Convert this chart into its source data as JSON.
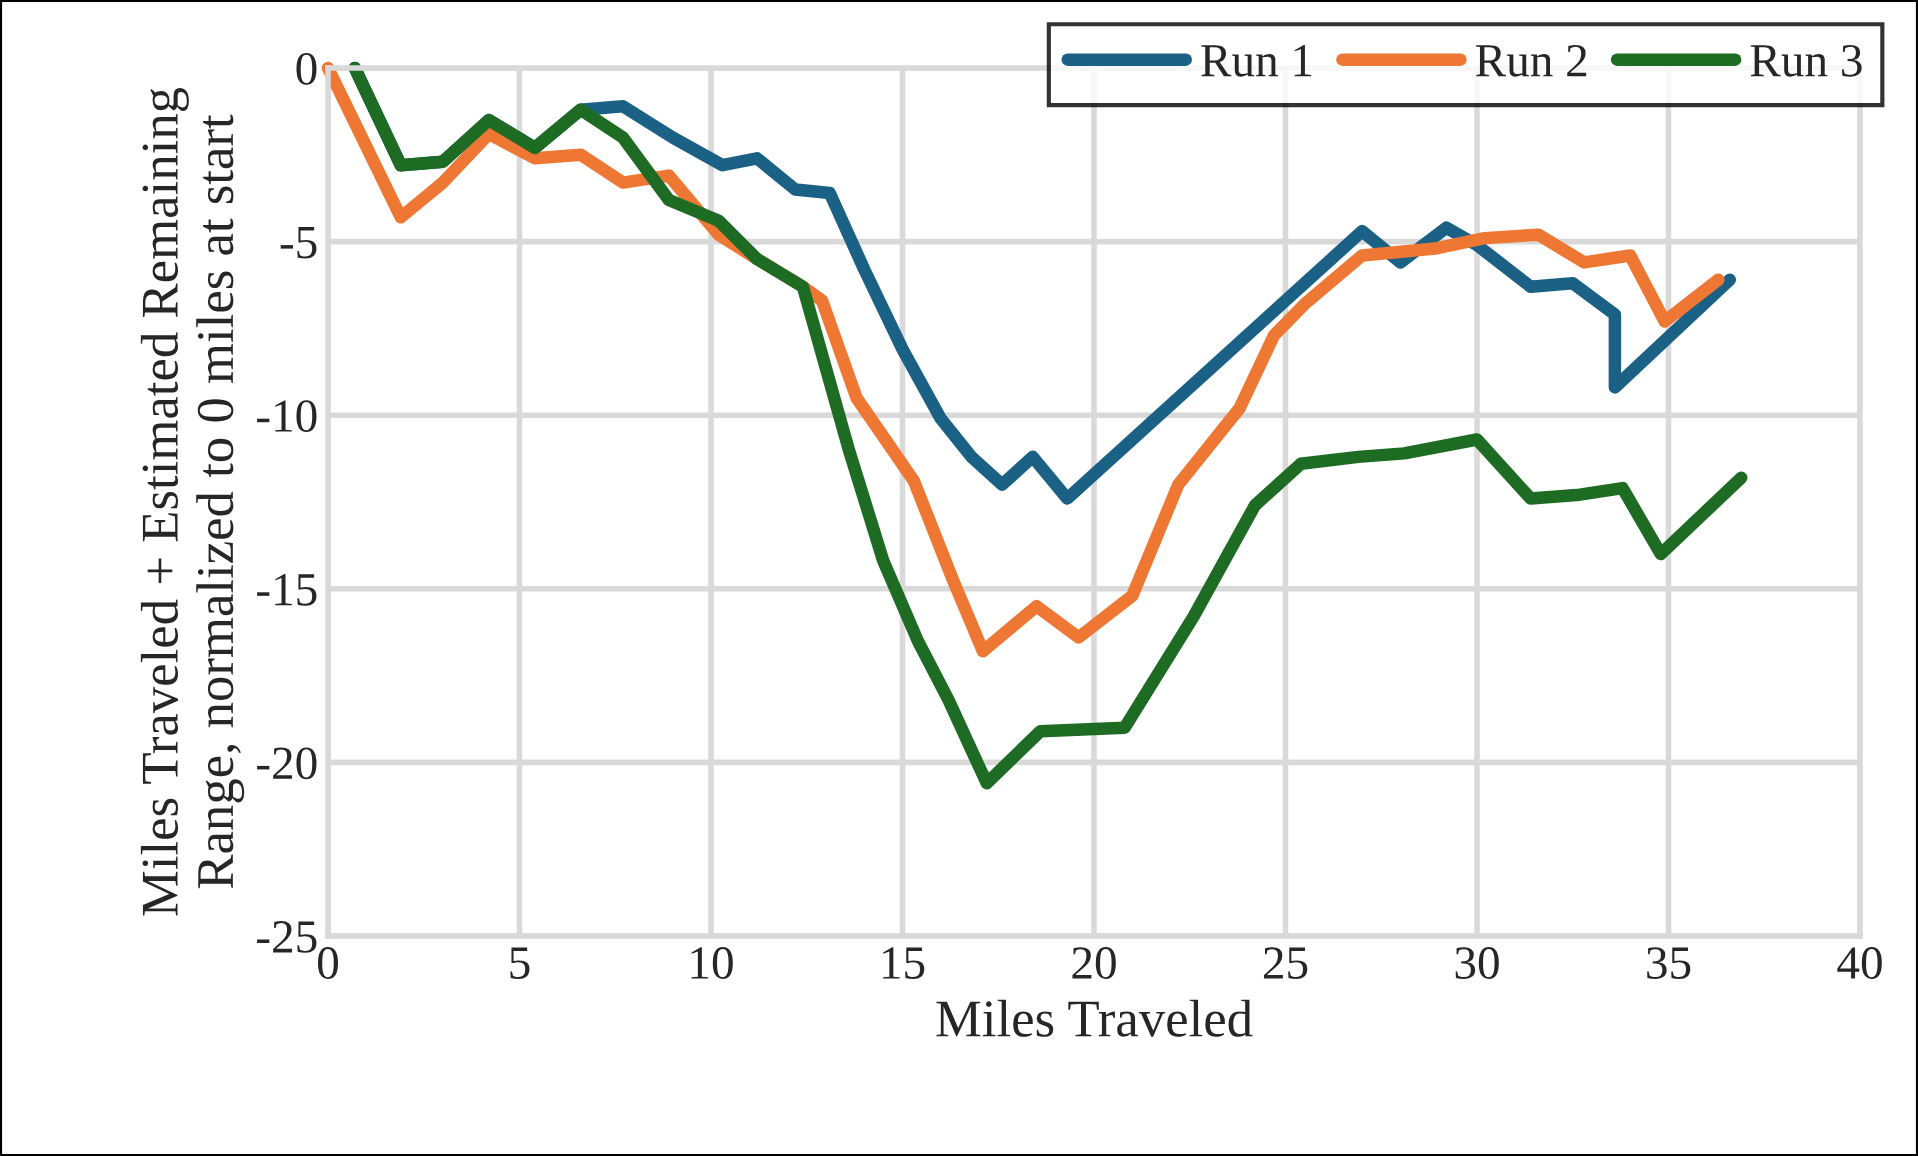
{
  "chart_data": {
    "type": "line",
    "xlabel": "Miles Traveled",
    "ylabel": "Miles Traveled + Estimated Remaining\nRange, normalized to 0 miles at start",
    "xlim": [
      0,
      40
    ],
    "xticks": [
      0,
      5,
      10,
      15,
      20,
      25,
      30,
      35,
      40
    ],
    "ylim": [
      -25,
      0
    ],
    "yticks": [
      -25,
      -20,
      -15,
      -10,
      -5,
      0
    ],
    "grid": true,
    "legend": "top right",
    "marker": "none",
    "line_style": "solid",
    "series": [
      {
        "name": "Run 1",
        "color": "#1b6185",
        "x": [
          0.7,
          1.9,
          3,
          4.2,
          5.4,
          6.6,
          7.7,
          9,
          10.3,
          11.2,
          12.2,
          13.1,
          14,
          15,
          16,
          16.8,
          17.6,
          18.4,
          19.3,
          27,
          28,
          29.2,
          30,
          31.4,
          32.5,
          33.6,
          33.6,
          36.6
        ],
        "values": [
          0,
          -2.8,
          -2.7,
          -1.5,
          -2.3,
          -1.2,
          -1.1,
          -2,
          -2.8,
          -2.6,
          -3.5,
          -3.6,
          -5.8,
          -8.1,
          -10.1,
          -11.2,
          -12,
          -11.2,
          -12.4,
          -4.7,
          -5.6,
          -4.6,
          -5.1,
          -6.3,
          -6.2,
          -7.1,
          -9.2,
          -6.1
        ]
      },
      {
        "name": "Run 2",
        "color": "#ed7733",
        "x": [
          0,
          1.9,
          3,
          4.2,
          5.4,
          6.6,
          7.7,
          8.9,
          10.2,
          11.2,
          12.4,
          12.9,
          13.8,
          15.3,
          16.3,
          17.1,
          18.5,
          19.6,
          21,
          22.2,
          23.8,
          24.7,
          25.5,
          27,
          28.9,
          30.2,
          31.6,
          32.8,
          34,
          34.9,
          36.3
        ],
        "values": [
          0,
          -4.3,
          -3.3,
          -1.9,
          -2.6,
          -2.5,
          -3.3,
          -3.1,
          -4.8,
          -5.5,
          -6.3,
          -6.7,
          -9.5,
          -11.9,
          -14.7,
          -16.8,
          -15.5,
          -16.4,
          -15.2,
          -12,
          -9.8,
          -7.7,
          -6.8,
          -5.4,
          -5.2,
          -4.9,
          -4.8,
          -5.6,
          -5.4,
          -7.3,
          -6.1
        ]
      },
      {
        "name": "Run 3",
        "color": "#1e6b24",
        "x": [
          0.7,
          1.9,
          3,
          4.2,
          5.4,
          6.6,
          7.7,
          8.9,
          10.2,
          11.2,
          12.4,
          13.6,
          14.5,
          15.4,
          16.2,
          17.2,
          18.6,
          20.8,
          22.6,
          24.2,
          25.4,
          26.9,
          28.1,
          30,
          31.4,
          32.6,
          33.8,
          34.8,
          36.9
        ],
        "values": [
          0,
          -2.8,
          -2.7,
          -1.5,
          -2.3,
          -1.2,
          -2,
          -3.8,
          -4.4,
          -5.5,
          -6.3,
          -11,
          -14.2,
          -16.5,
          -18.2,
          -20.6,
          -19.1,
          -19,
          -15.8,
          -12.6,
          -11.4,
          -11.2,
          -11.1,
          -10.7,
          -12.4,
          -12.3,
          -12.1,
          -14,
          -11.8
        ]
      }
    ]
  }
}
